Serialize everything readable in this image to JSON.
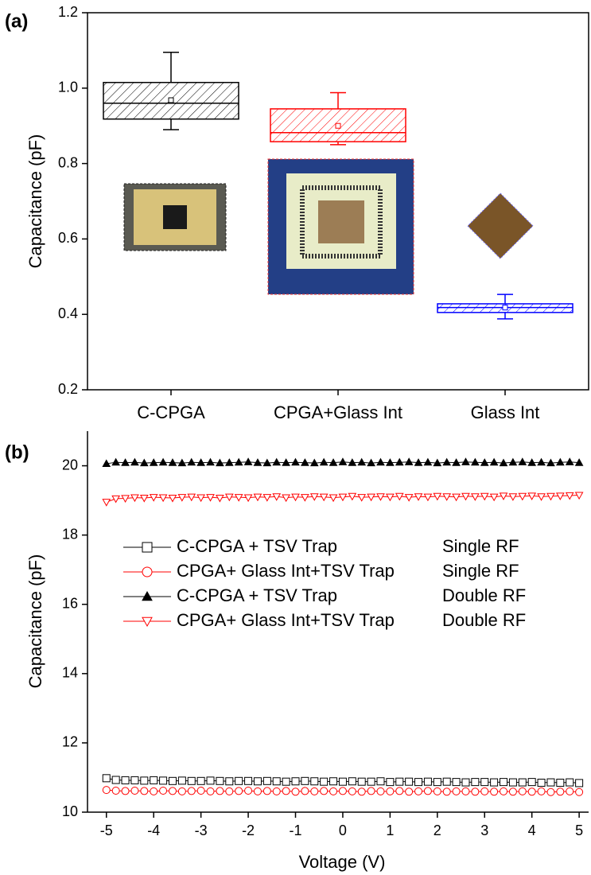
{
  "chart_data": [
    {
      "type": "box",
      "panel_label": "(a)",
      "y_label": "Capacitance (pF)",
      "categories": [
        "C-CPGA",
        "CPGA+Glass Int",
        "Glass Int"
      ],
      "boxes": [
        {
          "color": "#000000",
          "whisker_low": 0.89,
          "q1": 0.918,
          "median": 0.96,
          "q3": 1.015,
          "whisker_high": 1.095,
          "mean": 0.968
        },
        {
          "color": "#ff0000",
          "whisker_low": 0.85,
          "q1": 0.858,
          "median": 0.882,
          "q3": 0.945,
          "whisker_high": 0.988,
          "mean": 0.9
        },
        {
          "color": "#0000ff",
          "whisker_low": 0.388,
          "q1": 0.405,
          "median": 0.418,
          "q3": 0.428,
          "whisker_high": 0.453,
          "mean": 0.418
        }
      ],
      "ylim": [
        0.2,
        1.2
      ],
      "yticks": [
        0.2,
        0.4,
        0.6,
        0.8,
        {
          "value": 1,
          "label": "1.0"
        },
        1.2
      ]
    },
    {
      "type": "line",
      "panel_label": "(b)",
      "x_label": "Voltage (V)",
      "y_label": "Capacitance (pF)",
      "x": [
        -5,
        -4.8,
        -4.6,
        -4.4,
        -4.2,
        -4,
        -3.8,
        -3.6,
        -3.4,
        -3.2,
        -3,
        -2.8,
        -2.6,
        -2.4,
        -2.2,
        -2,
        -1.8,
        -1.6,
        -1.4,
        -1.2,
        -1,
        -0.8,
        -0.6,
        -0.4,
        -0.2,
        0,
        0.2,
        0.4,
        0.6,
        0.8,
        1,
        1.2,
        1.4,
        1.6,
        1.8,
        2,
        2.2,
        2.4,
        2.6,
        2.8,
        3,
        3.2,
        3.4,
        3.6,
        3.8,
        4,
        4.2,
        4.4,
        4.6,
        4.8,
        5
      ],
      "series": [
        {
          "name": "C-CPGA + TSV Trap",
          "rf": "Single RF",
          "color": "#000000",
          "marker": "square",
          "values": [
            10.98,
            10.93,
            10.92,
            10.92,
            10.91,
            10.92,
            10.91,
            10.9,
            10.91,
            10.9,
            10.9,
            10.91,
            10.9,
            10.89,
            10.9,
            10.9,
            10.89,
            10.9,
            10.89,
            10.88,
            10.89,
            10.9,
            10.89,
            10.88,
            10.89,
            10.88,
            10.89,
            10.88,
            10.88,
            10.89,
            10.87,
            10.88,
            10.88,
            10.87,
            10.88,
            10.87,
            10.88,
            10.87,
            10.86,
            10.87,
            10.87,
            10.86,
            10.87,
            10.86,
            10.86,
            10.87,
            10.85,
            10.86,
            10.85,
            10.86,
            10.84
          ]
        },
        {
          "name": "CPGA+ Glass Int+TSV Trap",
          "rf": "Single RF",
          "color": "#ff0000",
          "marker": "circle",
          "values": [
            10.64,
            10.62,
            10.61,
            10.62,
            10.61,
            10.6,
            10.62,
            10.61,
            10.6,
            10.61,
            10.62,
            10.6,
            10.61,
            10.6,
            10.61,
            10.62,
            10.6,
            10.61,
            10.6,
            10.61,
            10.59,
            10.61,
            10.6,
            10.61,
            10.6,
            10.61,
            10.6,
            10.59,
            10.61,
            10.6,
            10.6,
            10.61,
            10.59,
            10.6,
            10.61,
            10.6,
            10.59,
            10.6,
            10.6,
            10.59,
            10.6,
            10.59,
            10.6,
            10.59,
            10.6,
            10.59,
            10.6,
            10.58,
            10.59,
            10.6,
            10.58
          ]
        },
        {
          "name": "C-CPGA + TSV Trap",
          "rf": "Double RF",
          "color": "#000000",
          "marker": "triangle",
          "values": [
            20.06,
            20.1,
            20.09,
            20.1,
            20.08,
            20.09,
            20.1,
            20.09,
            20.08,
            20.1,
            20.09,
            20.1,
            20.08,
            20.09,
            20.1,
            20.11,
            20.09,
            20.08,
            20.1,
            20.09,
            20.1,
            20.09,
            20.08,
            20.1,
            20.09,
            20.11,
            20.09,
            20.1,
            20.08,
            20.1,
            20.09,
            20.1,
            20.11,
            20.09,
            20.1,
            20.08,
            20.1,
            20.09,
            20.11,
            20.1,
            20.09,
            20.1,
            20.08,
            20.1,
            20.11,
            20.09,
            20.1,
            20.08,
            20.1,
            20.11,
            20.09
          ]
        },
        {
          "name": "CPGA+ Glass Int+TSV Trap",
          "rf": "Double RF",
          "color": "#ff0000",
          "marker": "down-triangle",
          "values": [
            18.95,
            19.05,
            19.06,
            19.08,
            19.07,
            19.09,
            19.08,
            19.07,
            19.09,
            19.1,
            19.08,
            19.09,
            19.07,
            19.1,
            19.09,
            19.08,
            19.1,
            19.09,
            19.11,
            19.08,
            19.1,
            19.09,
            19.11,
            19.1,
            19.08,
            19.1,
            19.12,
            19.09,
            19.1,
            19.11,
            19.1,
            19.12,
            19.09,
            19.11,
            19.1,
            19.12,
            19.11,
            19.1,
            19.12,
            19.11,
            19.12,
            19.1,
            19.13,
            19.11,
            19.12,
            19.13,
            19.11,
            19.12,
            19.13,
            19.14,
            19.15
          ]
        }
      ],
      "xlim": [
        -5.4,
        5.2
      ],
      "xticks": [
        -5,
        -4,
        -3,
        -2,
        -1,
        0,
        1,
        2,
        3,
        4,
        5
      ],
      "ylim": [
        10,
        21
      ],
      "yticks": [
        10,
        12,
        14,
        16,
        18,
        20
      ]
    }
  ]
}
